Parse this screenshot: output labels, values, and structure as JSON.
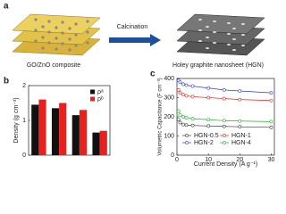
{
  "illustration": {
    "panel_label": "a",
    "left_caption": "GO/ZnO composite",
    "arrow_label": "Calcination",
    "right_caption": "Holey graphite nanosheet (HGN)"
  },
  "chart_data": [
    {
      "type": "bar",
      "panel_label": "b",
      "y_label": "Density (g cm⁻³)",
      "categories": [
        null,
        null,
        null,
        null
      ],
      "series": [
        {
          "name": "ρᵃ",
          "color": "#111111",
          "values": [
            1.45,
            1.35,
            1.15,
            0.65
          ]
        },
        {
          "name": "ρᵇ",
          "color": "#e8201e",
          "values": [
            1.6,
            1.5,
            1.3,
            0.7
          ]
        }
      ],
      "ylim": [
        0,
        2
      ],
      "yticks": [
        0,
        1,
        2
      ]
    },
    {
      "type": "line",
      "panel_label": "c",
      "x_label": "Current Density (A g⁻¹)",
      "y_label": "Volumetric Capacitance (F cm⁻³)",
      "x": [
        0.5,
        1,
        2,
        3,
        5,
        10,
        15,
        20,
        30
      ],
      "series": [
        {
          "name": "HGN-0.5",
          "color": "#333333",
          "values": [
            185,
            170,
            160,
            157,
            155,
            152,
            150,
            148,
            145
          ]
        },
        {
          "name": "HGN-1",
          "color": "#e8201e",
          "values": [
            340,
            325,
            315,
            310,
            305,
            300,
            295,
            290,
            285
          ]
        },
        {
          "name": "HGN-2",
          "color": "#2a3bd0",
          "values": [
            390,
            380,
            370,
            365,
            360,
            350,
            340,
            335,
            325
          ]
        },
        {
          "name": "HGN-4",
          "color": "#22b02a",
          "values": [
            230,
            210,
            200,
            195,
            190,
            185,
            180,
            178,
            175
          ]
        }
      ],
      "xlim": [
        0,
        31
      ],
      "xticks": [
        0,
        10,
        20,
        30
      ],
      "ylim": [
        0,
        400
      ],
      "yticks": [
        0,
        100,
        200,
        300,
        400
      ]
    }
  ]
}
